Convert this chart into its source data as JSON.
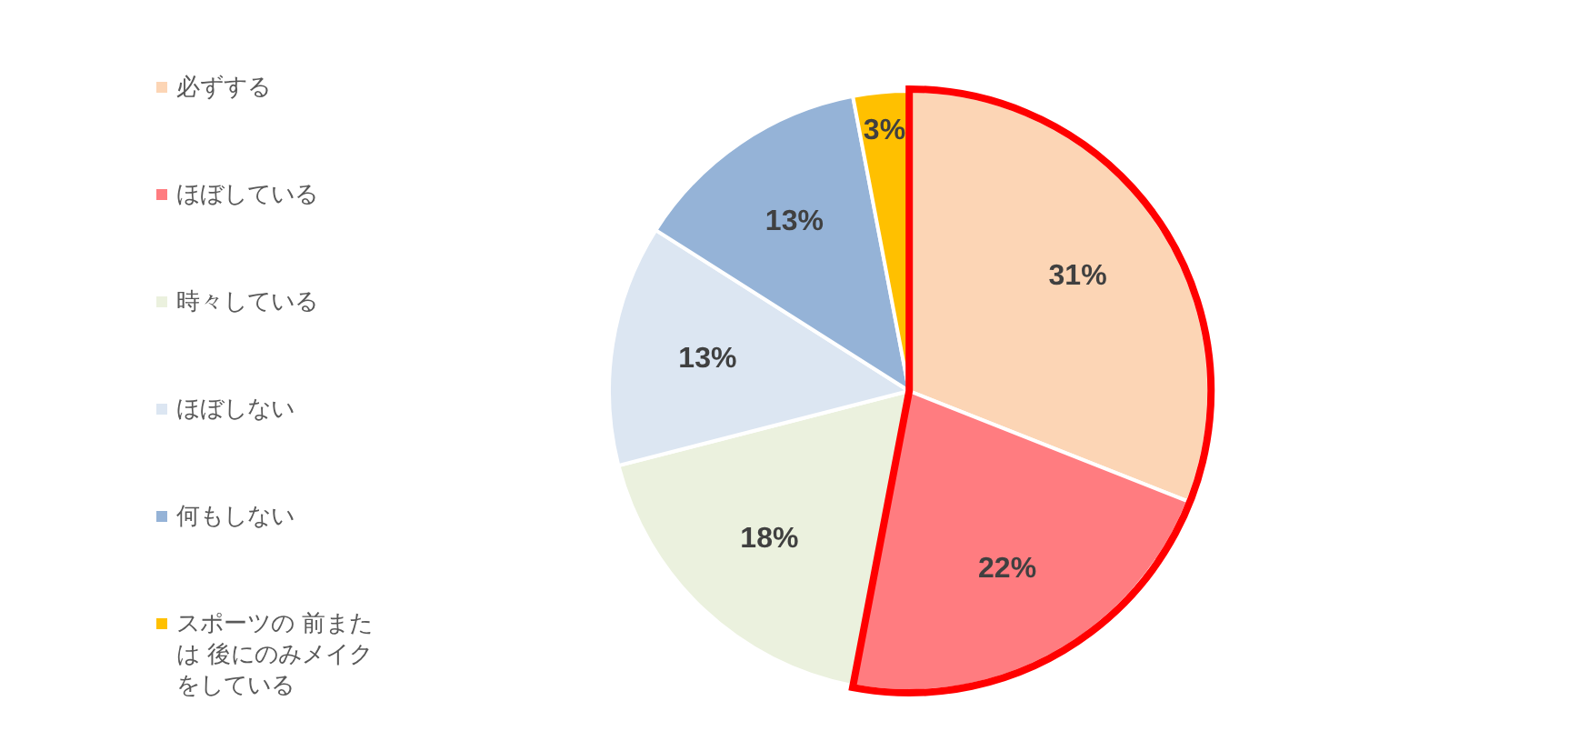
{
  "chart_data": {
    "type": "pie",
    "categories": [
      "必ずする",
      "ほぼしている",
      "時々している",
      "ほぼしない",
      "何もしない",
      "スポーツの 前または 後にのみメイクをしている"
    ],
    "values": [
      31,
      22,
      18,
      13,
      13,
      3
    ],
    "colors": [
      "#fcd5b5",
      "#ff7c80",
      "#ebf1de",
      "#dce6f2",
      "#95b3d7",
      "#ffc000"
    ],
    "value_labels": [
      "31%",
      "22%",
      "18%",
      "13%",
      "13%",
      "3%"
    ],
    "legend": "left"
  }
}
